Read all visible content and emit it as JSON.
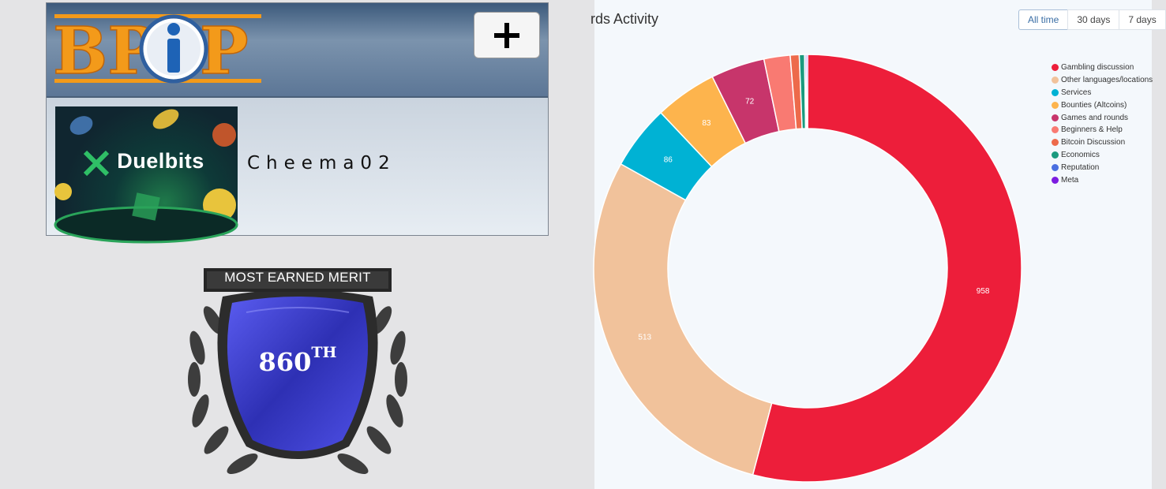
{
  "profile": {
    "logo_text": "BPIP",
    "add_label": "+",
    "banner_brand": "Duelbits",
    "username": "Cheema02"
  },
  "merit": {
    "title": "MOST EARNED MERIT",
    "rank_number": "860",
    "rank_suffix": "TH"
  },
  "chart_header": {
    "title": "rds Activity",
    "tabs": [
      "All time",
      "30 days",
      "7 days"
    ],
    "active_tab": "All time"
  },
  "chart_data": {
    "type": "pie",
    "variant": "donut",
    "categories": [
      "Gambling discussion",
      "Other languages/locations",
      "Services",
      "Bounties (Altcoins)",
      "Games and rounds",
      "Beginners & Help",
      "Bitcoin Discussion",
      "Economics",
      "Reputation",
      "Meta"
    ],
    "values": [
      958,
      513,
      86,
      83,
      72,
      35,
      12,
      7,
      2,
      2
    ],
    "data_labels": [
      "958",
      "513",
      "86",
      "83",
      "72",
      "",
      "",
      "",
      "",
      ""
    ],
    "colors": [
      "#ed1e3a",
      "#f1c29b",
      "#00b2d4",
      "#fdb44d",
      "#c7356b",
      "#f97a72",
      "#ed6a4b",
      "#1a9a7e",
      "#4a6fe0",
      "#7c1ce0"
    ],
    "legend_position": "right"
  }
}
